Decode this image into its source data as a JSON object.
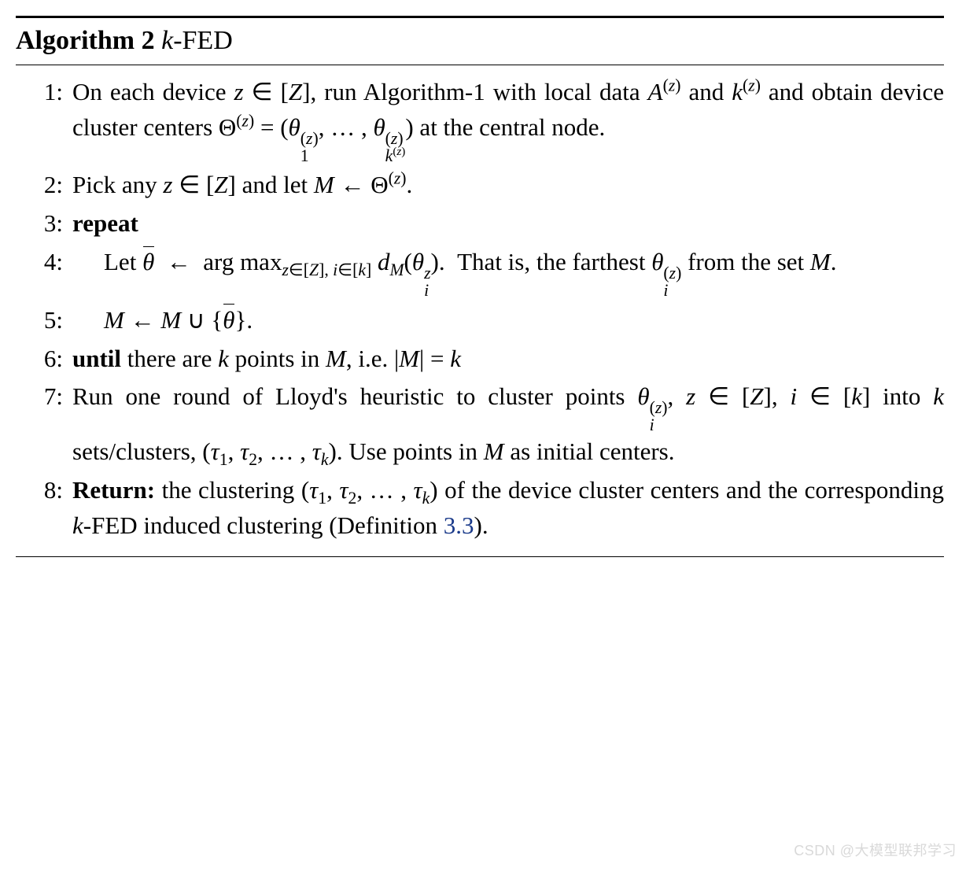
{
  "algorithm": {
    "number": "Algorithm 2",
    "name_prefix_html": "<span class=\"math\">k</span>-FED",
    "steps": [
      {
        "n": "1:",
        "html": "On each device <span class=\"math\">z</span> ∈ [<span class=\"math\">Z</span>], run Algorithm-1 with local data <span class=\"math\">A</span><sup>(<span class=\"math\">z</span>)</sup> and <span class=\"math\">k</span><sup>(<span class=\"math\">z</span>)</sup> and obtain device cluster centers Θ<sup>(<span class=\"math\">z</span>)</sup> = (<span class=\"math\">θ</span><span class=\"supsub\"><span class=\"sup\">(<span class=\"math\">z</span>)</span><span class=\"sub\">1</span></span>, … , <span class=\"math\">θ</span><span class=\"supsub\"><span class=\"sup\">(<span class=\"math\">z</span>)</span><span class=\"sub\"><span class=\"math\">k</span><sup>(<span class=\"math\">z</span>)</sup></span></span>) at the central node."
      },
      {
        "n": "2:",
        "html": "Pick any <span class=\"math\">z</span> ∈ [<span class=\"math\">Z</span>] and let <span class=\"math\">M</span> ← Θ<sup>(<span class=\"math\">z</span>)</sup>."
      },
      {
        "n": "3:",
        "html": "<b>repeat</b>"
      },
      {
        "n": "4:",
        "indent": true,
        "html": "Let <span class=\"bar\"><span class=\"math\">θ</span></span> &nbsp;←&nbsp; arg max<sub><span class=\"math\">z</span>∈[<span class=\"math\">Z</span>], <span class=\"math\">i</span>∈[<span class=\"math\">k</span>]</sub>&nbsp;<span class=\"math\">d<sub>M</sub></span>(<span class=\"math\">θ</span><span class=\"supsub\"><span class=\"sup\"><span class=\"math\">z</span></span><span class=\"sub\"><span class=\"math\">i</span></span></span>).&nbsp;&nbsp;That is, the farthest <span class=\"math\">θ</span><span class=\"supsub\"><span class=\"sup\">(<span class=\"math\">z</span>)</span><span class=\"sub\"><span class=\"math\">i</span></span></span> from the set <span class=\"math\">M</span>."
      },
      {
        "n": "5:",
        "indent": true,
        "html": "<span class=\"math\">M</span> ← <span class=\"math\">M</span> ∪ {<span class=\"bar\"><span class=\"math\">θ</span></span>}."
      },
      {
        "n": "6:",
        "html": "<b>until</b> there are <span class=\"math\">k</span> points in <span class=\"math\">M</span>, i.e. |<span class=\"math\">M</span>| = <span class=\"math\">k</span>"
      },
      {
        "n": "7:",
        "html": "Run one round of Lloyd's heuristic to cluster points <span class=\"math\">θ</span><span class=\"supsub\"><span class=\"sup\">(<span class=\"math\">z</span>)</span><span class=\"sub\"><span class=\"math\">i</span></span></span>, <span class=\"math\">z</span>&nbsp;∈&nbsp;[<span class=\"math\">Z</span>], <span class=\"math\">i</span>&nbsp;∈&nbsp;[<span class=\"math\">k</span>] into <span class=\"math\">k</span> sets/clusters, (<span class=\"math\">τ</span><sub>1</sub>, <span class=\"math\">τ</span><sub>2</sub>, … , <span class=\"math\">τ<sub>k</sub></span>). Use points in <span class=\"math\">M</span> as initial centers."
      },
      {
        "n": "8:",
        "html": "<b>Return:</b> the clustering (<span class=\"math\">τ</span><sub>1</sub>, <span class=\"math\">τ</span><sub>2</sub>, … , <span class=\"math\">τ<sub>k</sub></span>) of the device cluster centers and the corresponding <span class=\"math\">k</span>-FED induced clustering (Definition <span class=\"link\">3.3</span>)."
      }
    ]
  },
  "watermark": "CSDN @大模型联邦学习"
}
